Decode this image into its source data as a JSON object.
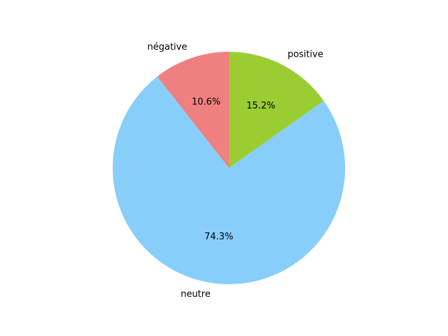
{
  "chart_data": {
    "type": "pie",
    "title": "",
    "start_angle_deg": 90,
    "counterclock": true,
    "slices": [
      {
        "label": "négative",
        "value": 10.6,
        "percent_label": "10.6%",
        "color": "#f08080"
      },
      {
        "label": "neutre",
        "value": 74.3,
        "percent_label": "74.3%",
        "color": "#87cefa"
      },
      {
        "label": "positive",
        "value": 15.2,
        "percent_label": "15.2%",
        "color": "#9acd32"
      }
    ]
  }
}
